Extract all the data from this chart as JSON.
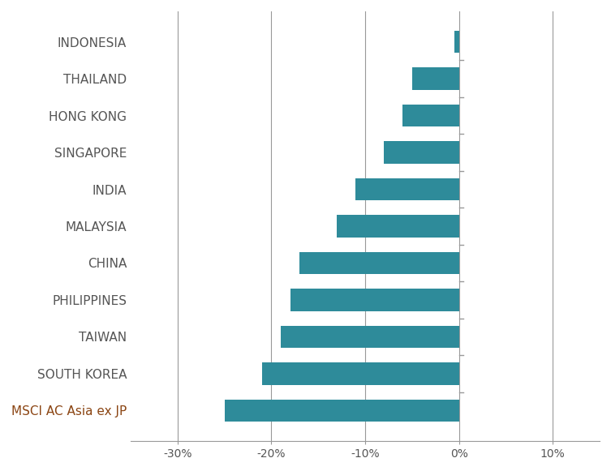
{
  "categories": [
    "MSCI AC Asia ex JP",
    "SOUTH KOREA",
    "TAIWAN",
    "PHILIPPINES",
    "CHINA",
    "MALAYSIA",
    "INDIA",
    "SINGAPORE",
    "HONG KONG",
    "THAILAND",
    "INDONESIA"
  ],
  "values": [
    -25.0,
    -21.0,
    -19.0,
    -18.0,
    -17.0,
    -13.0,
    -11.0,
    -8.0,
    -6.0,
    -5.0,
    -0.5
  ],
  "bar_color": "#2e8b9a",
  "xlim": [
    -35,
    15
  ],
  "xticks": [
    -30,
    -20,
    -10,
    0,
    10
  ],
  "xtick_labels": [
    "-30%",
    "-20%",
    "-10%",
    "0%",
    "10%"
  ],
  "label_color_special": "#8B4513",
  "label_color_normal": "#555555",
  "special_labels": [
    "MSCI AC Asia ex JP"
  ],
  "background_color": "#ffffff",
  "grid_color": "#999999",
  "bar_height": 0.6,
  "figsize": [
    7.53,
    5.81
  ],
  "dpi": 100
}
